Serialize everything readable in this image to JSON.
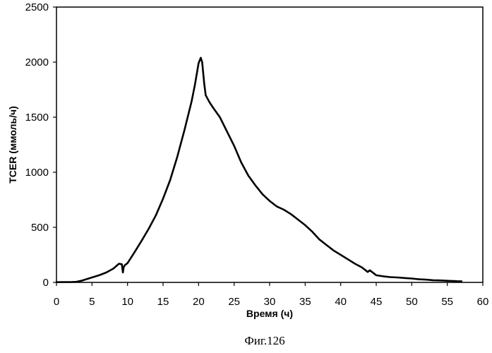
{
  "chart_data": {
    "type": "line",
    "title": "",
    "xlabel": "Время (ч)",
    "ylabel": "TCER (ммоль/ч)",
    "caption": "Фиг.126",
    "xlim": [
      0,
      60
    ],
    "ylim": [
      0,
      2500
    ],
    "x_ticks": [
      0,
      5,
      10,
      15,
      20,
      25,
      30,
      35,
      40,
      45,
      50,
      55,
      60
    ],
    "y_ticks": [
      0,
      500,
      1000,
      1500,
      2000,
      2500
    ],
    "grid": false,
    "legend": "none",
    "line_color": "#000000",
    "series": [
      {
        "x": [
          0,
          1,
          2,
          2.8,
          3.5,
          4,
          5,
          6,
          7,
          8,
          8.8,
          9.2,
          9.35,
          9.45,
          9.6,
          10,
          11,
          12,
          13,
          14,
          15,
          16,
          17,
          18,
          19,
          19.5,
          20,
          20.3,
          20.5,
          20.8,
          21,
          21.5,
          22,
          23,
          24,
          25,
          26,
          27,
          28,
          29,
          30,
          31,
          32,
          33,
          34,
          35,
          36,
          37,
          38,
          39,
          40,
          41,
          42,
          43,
          43.5,
          43.8,
          44.1,
          44.4,
          44.8,
          45,
          46,
          47,
          48,
          49,
          50,
          51,
          52,
          53,
          54,
          55,
          56,
          56.5,
          57
        ],
        "y": [
          2,
          3,
          3,
          5,
          15,
          25,
          45,
          65,
          90,
          125,
          170,
          165,
          90,
          135,
          155,
          175,
          275,
          380,
          490,
          610,
          760,
          930,
          1140,
          1380,
          1640,
          1800,
          1990,
          2040,
          2000,
          1800,
          1700,
          1640,
          1590,
          1500,
          1370,
          1240,
          1090,
          970,
          880,
          800,
          740,
          690,
          660,
          620,
          570,
          520,
          460,
          390,
          340,
          290,
          250,
          210,
          170,
          135,
          110,
          95,
          110,
          95,
          75,
          65,
          55,
          48,
          45,
          40,
          35,
          28,
          25,
          20,
          18,
          15,
          12,
          10,
          10
        ]
      }
    ]
  }
}
